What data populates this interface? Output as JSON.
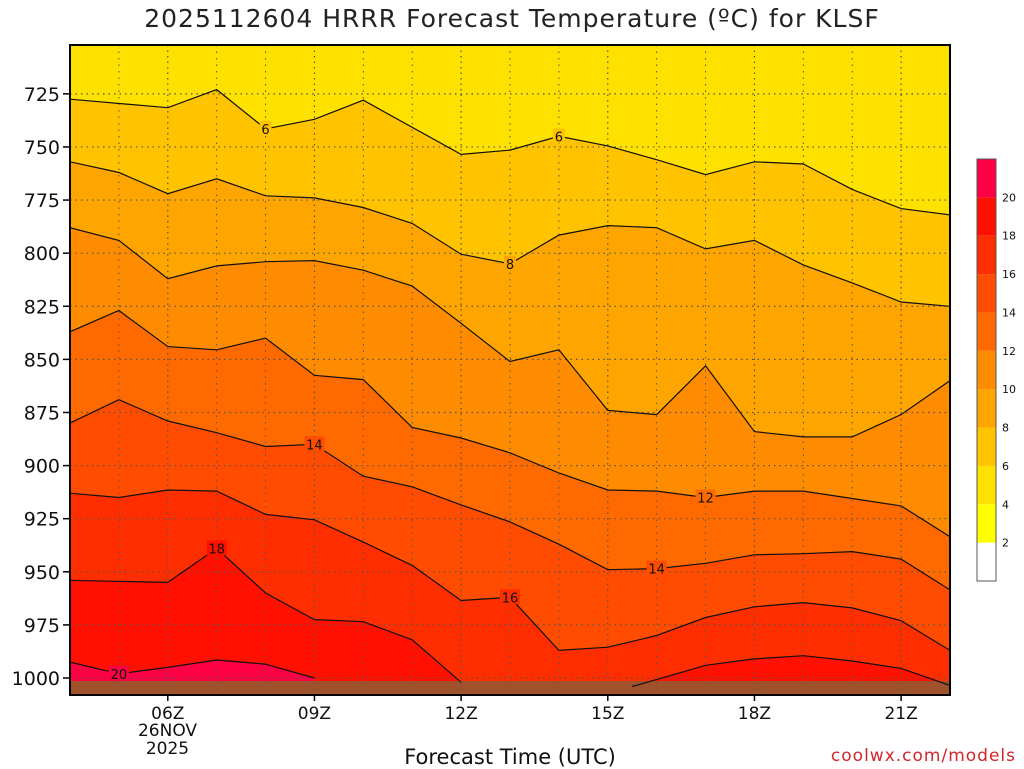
{
  "title": "2025112604 HRRR Forecast Temperature (ºC) for KLSF",
  "xlabel": "Forecast Time (UTC)",
  "credit": "coolwx.com/models",
  "date_line1": "26NOV",
  "date_line2": "2025",
  "chart_data": {
    "type": "heatmap",
    "title": "2025112604 HRRR Forecast Temperature (ºC) for KLSF",
    "xlabel": "Forecast Time (UTC)",
    "ylabel": "",
    "x_ticks": [
      {
        "hour": 6,
        "label": "06Z"
      },
      {
        "hour": 9,
        "label": "09Z"
      },
      {
        "hour": 12,
        "label": "12Z"
      },
      {
        "hour": 15,
        "label": "15Z"
      },
      {
        "hour": 18,
        "label": "18Z"
      },
      {
        "hour": 21,
        "label": "21Z"
      }
    ],
    "xlim": [
      4,
      22
    ],
    "y_ticks": [
      725,
      750,
      775,
      800,
      825,
      850,
      875,
      900,
      925,
      950,
      975,
      1000
    ],
    "ylim": [
      1008,
      702
    ],
    "colorbar": {
      "levels": [
        2,
        4,
        6,
        8,
        10,
        12,
        14,
        16,
        18,
        20
      ],
      "colors": [
        "#ffffff",
        "#ffff00",
        "#ffe100",
        "#ffc300",
        "#ffa500",
        "#ff8c00",
        "#ff6a00",
        "#ff4c00",
        "#ff2e00",
        "#ff1000",
        "#ff0044"
      ]
    },
    "ground_color": "#a0522d",
    "isotherms": [
      {
        "value": 6,
        "label": "6",
        "points": [
          [
            4,
            727.5
          ],
          [
            6,
            731.5
          ],
          [
            7,
            723
          ],
          [
            8,
            741.5
          ],
          [
            9,
            737
          ],
          [
            10,
            728
          ],
          [
            12,
            753.5
          ],
          [
            13,
            751.5
          ],
          [
            14,
            745
          ],
          [
            15,
            749.5
          ],
          [
            16,
            756
          ],
          [
            17,
            763
          ],
          [
            18,
            757
          ],
          [
            19,
            758
          ],
          [
            20,
            770
          ],
          [
            21,
            779
          ],
          [
            22,
            782
          ]
        ]
      },
      {
        "value": 8,
        "label": "8",
        "points": [
          [
            4,
            757
          ],
          [
            5,
            762
          ],
          [
            6,
            772
          ],
          [
            7,
            765
          ],
          [
            8,
            773
          ],
          [
            9,
            774
          ],
          [
            10,
            778.5
          ],
          [
            11,
            786
          ],
          [
            12,
            800.5
          ],
          [
            13,
            805
          ],
          [
            14,
            791.5
          ],
          [
            15,
            787
          ],
          [
            16,
            788
          ],
          [
            17,
            798
          ],
          [
            18,
            794
          ],
          [
            19,
            805.5
          ],
          [
            20,
            814
          ],
          [
            21,
            823
          ],
          [
            22,
            825
          ]
        ]
      },
      {
        "value": 10,
        "label": "",
        "points": [
          [
            4,
            788
          ],
          [
            5,
            794
          ],
          [
            6,
            812
          ],
          [
            7,
            806
          ],
          [
            8,
            804
          ],
          [
            9,
            803.5
          ],
          [
            10,
            808
          ],
          [
            11,
            815.5
          ],
          [
            12,
            833
          ],
          [
            13,
            851
          ],
          [
            14,
            845.5
          ],
          [
            15,
            874
          ],
          [
            16,
            876
          ],
          [
            17,
            853
          ],
          [
            18,
            884
          ],
          [
            19,
            886.5
          ],
          [
            20,
            886.5
          ],
          [
            21,
            876
          ],
          [
            22,
            860
          ]
        ]
      },
      {
        "value": 12,
        "label": "12",
        "points": [
          [
            4,
            837
          ],
          [
            5,
            827
          ],
          [
            6,
            844
          ],
          [
            7,
            845.5
          ],
          [
            8,
            840
          ],
          [
            9,
            857.5
          ],
          [
            10,
            859.5
          ],
          [
            11,
            882
          ],
          [
            12,
            887
          ],
          [
            13,
            894
          ],
          [
            14,
            903.5
          ],
          [
            15,
            911.5
          ],
          [
            16,
            912
          ],
          [
            17,
            915
          ],
          [
            18,
            912
          ],
          [
            19,
            912
          ],
          [
            20,
            915.5
          ],
          [
            21,
            919
          ],
          [
            22,
            933.5
          ]
        ]
      },
      {
        "value": 14,
        "label": "14",
        "points": [
          [
            4,
            880
          ],
          [
            5,
            869
          ],
          [
            6,
            879
          ],
          [
            7,
            884.5
          ],
          [
            8,
            891
          ],
          [
            9,
            890
          ],
          [
            10,
            905
          ],
          [
            11,
            910
          ],
          [
            12,
            918.5
          ],
          [
            13,
            926.5
          ],
          [
            14,
            937
          ],
          [
            15,
            949
          ],
          [
            16,
            948.5
          ],
          [
            17,
            946
          ],
          [
            18,
            942
          ],
          [
            19,
            941.5
          ],
          [
            20,
            940.5
          ],
          [
            21,
            944
          ],
          [
            22,
            958.5
          ]
        ]
      },
      {
        "value": 16,
        "label": "16",
        "points": [
          [
            4,
            913
          ],
          [
            5,
            915
          ],
          [
            6,
            911.5
          ],
          [
            7,
            912
          ],
          [
            8,
            923
          ],
          [
            9,
            925.5
          ],
          [
            10,
            936
          ],
          [
            11,
            947
          ],
          [
            12,
            963.5
          ],
          [
            13,
            962
          ],
          [
            14,
            987
          ],
          [
            15,
            985.5
          ],
          [
            16,
            980
          ],
          [
            17,
            971.5
          ],
          [
            18,
            966.5
          ],
          [
            19,
            964.5
          ],
          [
            20,
            967
          ],
          [
            21,
            973
          ],
          [
            22,
            987
          ]
        ]
      },
      {
        "value": 18,
        "label": "18",
        "points": [
          [
            4,
            954
          ],
          [
            6,
            955
          ],
          [
            7,
            939
          ],
          [
            8,
            960
          ],
          [
            9,
            972.5
          ],
          [
            10,
            973.5
          ],
          [
            11,
            982
          ],
          [
            12,
            1002
          ]
        ]
      },
      {
        "value": 18,
        "label": "",
        "points": [
          [
            15.5,
            1004
          ],
          [
            17,
            994
          ],
          [
            18,
            991
          ],
          [
            19,
            989.5
          ],
          [
            20,
            992
          ],
          [
            21,
            995.5
          ],
          [
            22,
            1003.5
          ]
        ]
      },
      {
        "value": 20,
        "label": "20",
        "points": [
          [
            4,
            992.5
          ],
          [
            5,
            998
          ],
          [
            6,
            995
          ],
          [
            7,
            991.5
          ],
          [
            8,
            993.5
          ],
          [
            9,
            1000
          ]
        ]
      }
    ]
  }
}
